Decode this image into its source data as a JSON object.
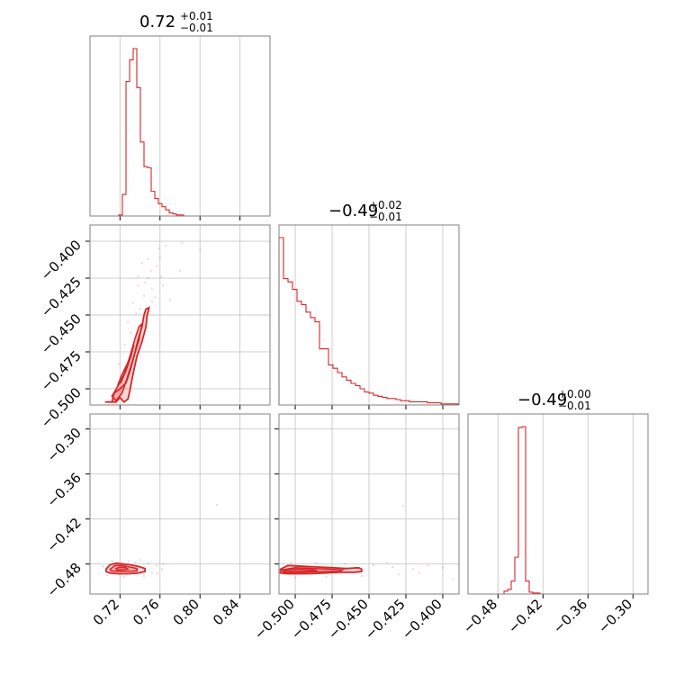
{
  "chart_data": {
    "type": "corner",
    "color": "#d62728",
    "parameters": [
      {
        "title": {
          "median": "0.72",
          "upper": "+0.01",
          "lower": "−0.01"
        },
        "range": [
          0.69,
          0.87
        ],
        "ticks": [
          0.72,
          0.76,
          0.8,
          0.84
        ],
        "tick_labels": [
          "0.72",
          "0.76",
          "0.80",
          "0.84"
        ]
      },
      {
        "title": {
          "median": "−0.49",
          "upper": "+0.02",
          "lower": "−0.01"
        },
        "range": [
          -0.511,
          -0.389
        ],
        "ticks": [
          -0.5,
          -0.475,
          -0.45,
          -0.425,
          -0.4
        ],
        "tick_labels": [
          "−0.500",
          "−0.475",
          "−0.450",
          "−0.425",
          "−0.400"
        ]
      },
      {
        "title": {
          "median": "−0.49",
          "upper": "+0.00",
          "lower": "−0.01"
        },
        "range": [
          -0.52,
          -0.28
        ],
        "ticks": [
          -0.48,
          -0.42,
          -0.36,
          -0.3
        ],
        "tick_labels": [
          "−0.48",
          "−0.42",
          "−0.36",
          "−0.30"
        ]
      }
    ],
    "histograms": [
      [
        0,
        0,
        0,
        0,
        0,
        0,
        0,
        0,
        1,
        21,
        131,
        152,
        163,
        125,
        72,
        48,
        47,
        24,
        17,
        12,
        9,
        6,
        3,
        2,
        1,
        1,
        0,
        0,
        0,
        0,
        0,
        0,
        0,
        0,
        0,
        0,
        0,
        0,
        0,
        0,
        0,
        0,
        0,
        0,
        0,
        0,
        0,
        0,
        0,
        0
      ],
      [
        155,
        117,
        114,
        107,
        96,
        93,
        86,
        81,
        77,
        52,
        52,
        37,
        34,
        30,
        26,
        23,
        20,
        18,
        15,
        12,
        11,
        9,
        8,
        7,
        6,
        6,
        5,
        4,
        4,
        3,
        3,
        3,
        3,
        2,
        2,
        2,
        1,
        1,
        1,
        1
      ],
      [
        0,
        0,
        0,
        0,
        0,
        0,
        0,
        0,
        0,
        0,
        3,
        5,
        14,
        40,
        181,
        182,
        14,
        2,
        1,
        1,
        0,
        0,
        0,
        0,
        0,
        0,
        0,
        0,
        0,
        0,
        0,
        0,
        0,
        0,
        0,
        0,
        0,
        0,
        0,
        0,
        0,
        0,
        0,
        0,
        0,
        0,
        0,
        0,
        0,
        0
      ]
    ],
    "contour_regions": [
      {
        "pair": [
          0,
          1
        ],
        "outer": [
          [
            0.705,
            -0.509
          ],
          [
            0.712,
            -0.509
          ],
          [
            0.714,
            -0.503
          ],
          [
            0.72,
            -0.5
          ],
          [
            0.726,
            -0.496
          ],
          [
            0.73,
            -0.488
          ],
          [
            0.734,
            -0.478
          ],
          [
            0.738,
            -0.467
          ],
          [
            0.742,
            -0.458
          ],
          [
            0.744,
            -0.45
          ],
          [
            0.746,
            -0.446
          ],
          [
            0.749,
            -0.445
          ],
          [
            0.747,
            -0.451
          ],
          [
            0.746,
            -0.458
          ],
          [
            0.742,
            -0.468
          ],
          [
            0.737,
            -0.478
          ],
          [
            0.733,
            -0.49
          ],
          [
            0.73,
            -0.501
          ],
          [
            0.728,
            -0.507
          ],
          [
            0.724,
            -0.509
          ],
          [
            0.72,
            -0.506
          ],
          [
            0.716,
            -0.509
          ]
        ],
        "middle": [
          [
            0.712,
            -0.505
          ],
          [
            0.718,
            -0.498
          ],
          [
            0.724,
            -0.49
          ],
          [
            0.73,
            -0.478
          ],
          [
            0.735,
            -0.466
          ],
          [
            0.739,
            -0.458
          ],
          [
            0.742,
            -0.456
          ],
          [
            0.739,
            -0.467
          ],
          [
            0.733,
            -0.48
          ],
          [
            0.727,
            -0.493
          ],
          [
            0.722,
            -0.503
          ],
          [
            0.716,
            -0.508
          ]
        ],
        "inner": [
          [
            0.718,
            -0.497
          ],
          [
            0.722,
            -0.49
          ],
          [
            0.728,
            -0.482
          ],
          [
            0.732,
            -0.474
          ],
          [
            0.734,
            -0.47
          ],
          [
            0.731,
            -0.478
          ],
          [
            0.726,
            -0.488
          ],
          [
            0.721,
            -0.496
          ]
        ]
      },
      {
        "pair": [
          0,
          2
        ],
        "outer": [
          [
            0.706,
            -0.487
          ],
          [
            0.71,
            -0.481
          ],
          [
            0.716,
            -0.479
          ],
          [
            0.724,
            -0.48
          ],
          [
            0.73,
            -0.481
          ],
          [
            0.738,
            -0.483
          ],
          [
            0.745,
            -0.486
          ],
          [
            0.745,
            -0.49
          ],
          [
            0.738,
            -0.492
          ],
          [
            0.728,
            -0.493
          ],
          [
            0.718,
            -0.493
          ],
          [
            0.71,
            -0.492
          ],
          [
            0.706,
            -0.49
          ]
        ],
        "middle": [
          [
            0.71,
            -0.487
          ],
          [
            0.715,
            -0.482
          ],
          [
            0.722,
            -0.482
          ],
          [
            0.73,
            -0.484
          ],
          [
            0.737,
            -0.486
          ],
          [
            0.737,
            -0.489
          ],
          [
            0.728,
            -0.49
          ],
          [
            0.718,
            -0.49
          ],
          [
            0.711,
            -0.489
          ]
        ],
        "inner": [
          [
            0.716,
            -0.486
          ],
          [
            0.72,
            -0.484
          ],
          [
            0.726,
            -0.485
          ],
          [
            0.728,
            -0.487
          ],
          [
            0.722,
            -0.488
          ],
          [
            0.717,
            -0.488
          ]
        ]
      },
      {
        "pair": [
          1,
          2
        ],
        "outer": [
          [
            -0.51,
            -0.487
          ],
          [
            -0.505,
            -0.482
          ],
          [
            -0.495,
            -0.483
          ],
          [
            -0.485,
            -0.484
          ],
          [
            -0.475,
            -0.485
          ],
          [
            -0.465,
            -0.486
          ],
          [
            -0.457,
            -0.485
          ],
          [
            -0.455,
            -0.487
          ],
          [
            -0.455,
            -0.49
          ],
          [
            -0.46,
            -0.491
          ],
          [
            -0.47,
            -0.491
          ],
          [
            -0.48,
            -0.492
          ],
          [
            -0.492,
            -0.493
          ],
          [
            -0.505,
            -0.493
          ],
          [
            -0.51,
            -0.492
          ]
        ],
        "middle": [
          [
            -0.509,
            -0.488
          ],
          [
            -0.5,
            -0.485
          ],
          [
            -0.488,
            -0.486
          ],
          [
            -0.476,
            -0.487
          ],
          [
            -0.468,
            -0.488
          ],
          [
            -0.47,
            -0.49
          ],
          [
            -0.482,
            -0.49
          ],
          [
            -0.495,
            -0.491
          ],
          [
            -0.508,
            -0.491
          ]
        ],
        "inner": [
          [
            -0.508,
            -0.488
          ],
          [
            -0.498,
            -0.487
          ],
          [
            -0.488,
            -0.488
          ],
          [
            -0.485,
            -0.489
          ],
          [
            -0.495,
            -0.49
          ],
          [
            -0.507,
            -0.49
          ]
        ]
      }
    ],
    "scatter_points": [
      {
        "pair": [
          0,
          1
        ],
        "points": [
          [
            0.742,
            -0.415
          ],
          [
            0.748,
            -0.425
          ],
          [
            0.752,
            -0.432
          ],
          [
            0.76,
            -0.411
          ],
          [
            0.755,
            -0.438
          ],
          [
            0.738,
            -0.43
          ],
          [
            0.733,
            -0.442
          ],
          [
            0.744,
            -0.437
          ],
          [
            0.761,
            -0.424
          ],
          [
            0.766,
            -0.403
          ],
          [
            0.782,
            -0.401
          ],
          [
            0.751,
            -0.42
          ],
          [
            0.728,
            -0.455
          ],
          [
            0.736,
            -0.449
          ],
          [
            0.745,
            -0.428
          ],
          [
            0.757,
            -0.417
          ],
          [
            0.763,
            -0.43
          ],
          [
            0.74,
            -0.446
          ],
          [
            0.731,
            -0.462
          ],
          [
            0.725,
            -0.47
          ],
          [
            0.719,
            -0.483
          ],
          [
            0.752,
            -0.441
          ],
          [
            0.759,
            -0.405
          ],
          [
            0.748,
            -0.412
          ],
          [
            0.738,
            -0.424
          ],
          [
            0.8,
            -0.405
          ],
          [
            0.78,
            -0.42
          ],
          [
            0.77,
            -0.44
          ]
        ]
      },
      {
        "pair": [
          0,
          2
        ],
        "points": [
          [
            0.712,
            -0.476
          ],
          [
            0.735,
            -0.478
          ],
          [
            0.748,
            -0.479
          ],
          [
            0.757,
            -0.482
          ],
          [
            0.762,
            -0.487
          ],
          [
            0.757,
            -0.493
          ],
          [
            0.744,
            -0.496
          ],
          [
            0.724,
            -0.497
          ],
          [
            0.707,
            -0.495
          ],
          [
            0.763,
            -0.48
          ],
          [
            0.752,
            -0.492
          ],
          [
            0.74,
            -0.475
          ],
          [
            0.817,
            -0.401
          ],
          [
            0.729,
            -0.476
          ],
          [
            0.703,
            -0.483
          ]
        ]
      },
      {
        "pair": [
          1,
          2
        ],
        "points": [
          [
            -0.503,
            -0.478
          ],
          [
            -0.486,
            -0.479
          ],
          [
            -0.466,
            -0.48
          ],
          [
            -0.447,
            -0.482
          ],
          [
            -0.434,
            -0.484
          ],
          [
            -0.42,
            -0.487
          ],
          [
            -0.41,
            -0.482
          ],
          [
            -0.4,
            -0.485
          ],
          [
            -0.43,
            -0.494
          ],
          [
            -0.455,
            -0.496
          ],
          [
            -0.479,
            -0.497
          ],
          [
            -0.5,
            -0.498
          ],
          [
            -0.438,
            -0.478
          ],
          [
            -0.416,
            -0.492
          ],
          [
            -0.427,
            -0.403
          ],
          [
            -0.393,
            -0.5
          ]
        ]
      }
    ]
  }
}
